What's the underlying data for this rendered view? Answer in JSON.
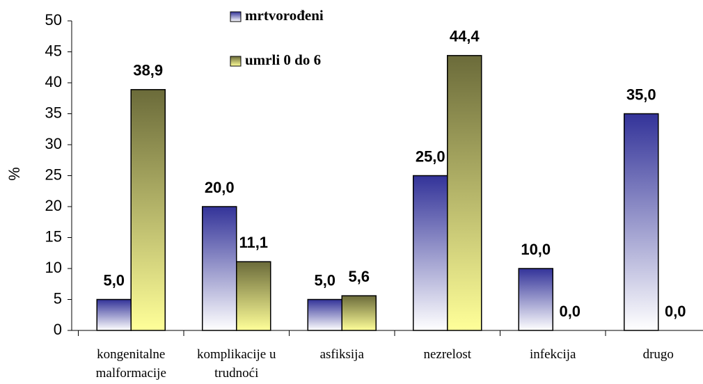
{
  "chart_data": {
    "type": "bar",
    "categories": [
      "kongenitalne\nmalformacije",
      "komplikacije u\ntrudnoći",
      "asfiksija",
      "nezrelost",
      "infekcija",
      "drugo"
    ],
    "series": [
      {
        "name": "mrtvorođeni",
        "color": "#333399",
        "values": [
          5.0,
          20.0,
          5.0,
          25.0,
          10.0,
          35.0
        ],
        "value_labels": [
          "5,0",
          "20,0",
          "5,0",
          "25,0",
          "10,0",
          "35,0"
        ]
      },
      {
        "name": "umrli 0 do 6",
        "color": "#6b6b3a",
        "values": [
          38.9,
          11.1,
          5.6,
          44.4,
          0.0,
          0.0
        ],
        "value_labels": [
          "38,9",
          "11,1",
          "5,6",
          "44,4",
          "0,0",
          "0,0"
        ]
      }
    ],
    "y_label": "%",
    "ylim": [
      0,
      50
    ],
    "yticks": [
      0,
      5,
      10,
      15,
      20,
      25,
      30,
      35,
      40,
      45,
      50
    ]
  }
}
